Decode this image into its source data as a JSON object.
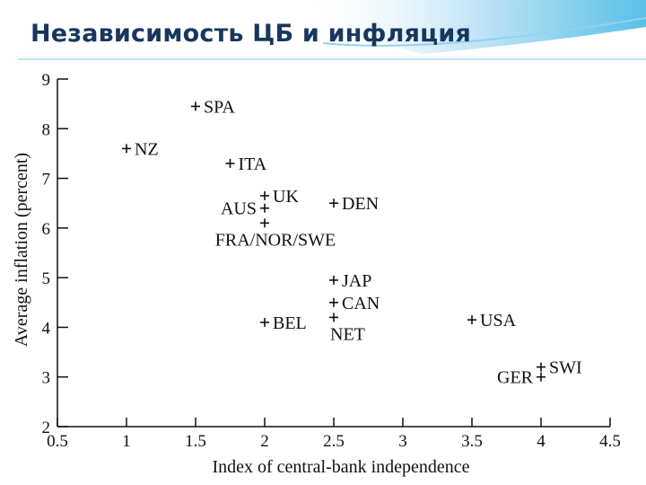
{
  "slide": {
    "title": "Независимость ЦБ и инфляция",
    "accent_color": "#17375e",
    "band_color": "#5bc0e8"
  },
  "chart_data": {
    "type": "scatter",
    "xlabel": "Index of central-bank independence",
    "ylabel": "Average inflation (percent)",
    "xlim": [
      0.5,
      4.5
    ],
    "ylim": [
      2,
      9
    ],
    "xticks": [
      "0.5",
      "1",
      "1.5",
      "2",
      "2.5",
      "3",
      "3.5",
      "4",
      "4.5"
    ],
    "yticks": [
      "2",
      "3",
      "4",
      "5",
      "6",
      "7",
      "8",
      "9"
    ],
    "grid": false,
    "points": [
      {
        "label": "SPA",
        "x": 1.5,
        "y": 8.45,
        "label_side": "right"
      },
      {
        "label": "NZ",
        "x": 1.0,
        "y": 7.6,
        "label_side": "right"
      },
      {
        "label": "ITA",
        "x": 1.75,
        "y": 7.3,
        "label_side": "right"
      },
      {
        "label": "UK",
        "x": 2.0,
        "y": 6.65,
        "label_side": "right"
      },
      {
        "label": "AUS",
        "x": 2.0,
        "y": 6.4,
        "label_side": "left"
      },
      {
        "label": "FRA/NOR/SWE",
        "x": 2.0,
        "y": 6.1,
        "label_side": "below"
      },
      {
        "label": "DEN",
        "x": 2.5,
        "y": 6.5,
        "label_side": "right"
      },
      {
        "label": "JAP",
        "x": 2.5,
        "y": 4.95,
        "label_side": "right"
      },
      {
        "label": "CAN",
        "x": 2.5,
        "y": 4.5,
        "label_side": "right"
      },
      {
        "label": "NET",
        "x": 2.5,
        "y": 4.2,
        "label_side": "below"
      },
      {
        "label": "BEL",
        "x": 2.0,
        "y": 4.1,
        "label_side": "right"
      },
      {
        "label": "USA",
        "x": 3.5,
        "y": 4.15,
        "label_side": "right"
      },
      {
        "label": "SWI",
        "x": 4.0,
        "y": 3.2,
        "label_side": "right"
      },
      {
        "label": "GER",
        "x": 4.0,
        "y": 3.0,
        "label_side": "left"
      }
    ]
  }
}
